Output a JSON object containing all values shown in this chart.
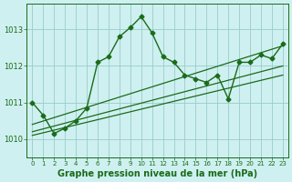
{
  "xlabel": "Graphe pression niveau de la mer (hPa)",
  "background_color": "#cff0f0",
  "grid_color": "#99cccc",
  "line_color": "#1a6b1a",
  "x_values": [
    0,
    1,
    2,
    3,
    4,
    5,
    6,
    7,
    8,
    9,
    10,
    11,
    12,
    13,
    14,
    15,
    16,
    17,
    18,
    19,
    20,
    21,
    22,
    23
  ],
  "y_main": [
    1011.0,
    1010.65,
    1010.15,
    1010.3,
    1010.5,
    1010.85,
    1012.1,
    1012.25,
    1012.8,
    1013.05,
    1013.35,
    1012.9,
    1012.25,
    1012.1,
    1011.75,
    1011.65,
    1011.55,
    1011.75,
    1011.1,
    1012.1,
    1012.1,
    1012.3,
    1012.2,
    1012.6
  ],
  "ylim": [
    1009.5,
    1013.7
  ],
  "xlim": [
    -0.5,
    23.5
  ],
  "yticks": [
    1010,
    1011,
    1012,
    1013
  ],
  "trend_lines": [
    {
      "x0": 0,
      "y0": 1010.1,
      "x1": 23,
      "y1": 1011.75
    },
    {
      "x0": 0,
      "y0": 1010.2,
      "x1": 23,
      "y1": 1012.0
    },
    {
      "x0": 0,
      "y0": 1010.4,
      "x1": 23,
      "y1": 1012.55
    }
  ],
  "xtick_fontsize": 5.0,
  "ytick_fontsize": 6.0,
  "xlabel_fontsize": 7.0
}
